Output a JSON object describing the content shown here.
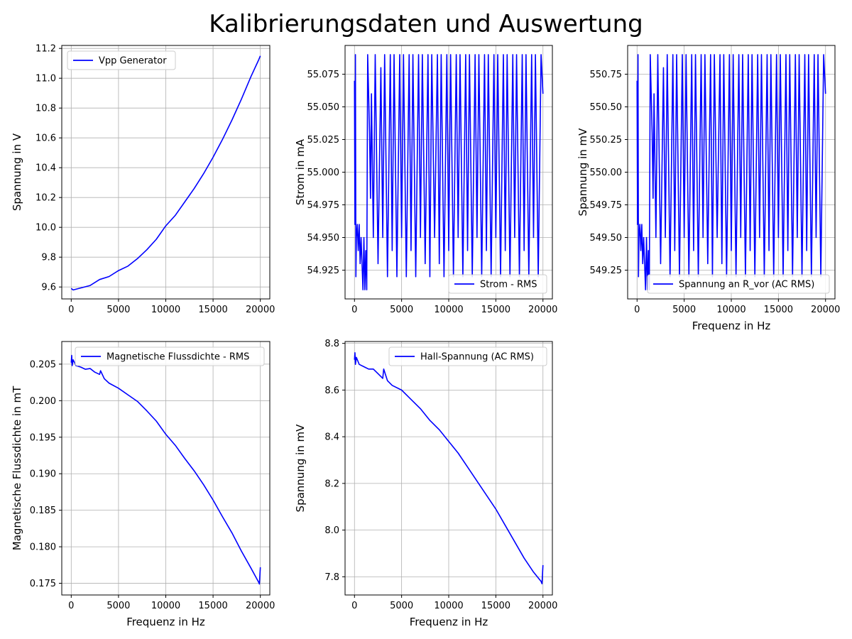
{
  "figure": {
    "title": "Kalibrierungsdaten und Auswertung"
  },
  "chart_data": [
    {
      "id": "p1",
      "type": "line",
      "xlabel": "",
      "ylabel": "Spannung in V",
      "xlim": [
        -1000,
        21000
      ],
      "ylim": [
        9.52,
        11.22
      ],
      "xticks": [
        0,
        5000,
        10000,
        15000,
        20000
      ],
      "xtick_labels": [
        "0",
        "5000",
        "10000",
        "15000",
        "20000"
      ],
      "yticks": [
        9.6,
        9.8,
        10.0,
        10.2,
        10.4,
        10.6,
        10.8,
        11.0,
        11.2
      ],
      "ytick_labels": [
        "9.6",
        "9.8",
        "10.0",
        "10.2",
        "10.4",
        "10.6",
        "10.8",
        "11.0",
        "11.2"
      ],
      "grid": true,
      "legend_position": "upper-left",
      "series": [
        {
          "name": "Vpp Generator",
          "color": "#0000ff",
          "x": [
            0,
            200,
            2000,
            3000,
            4000,
            5000,
            6000,
            7000,
            8000,
            9000,
            10000,
            11000,
            12000,
            13000,
            14000,
            15000,
            16000,
            17000,
            18000,
            19000,
            19800,
            20000
          ],
          "y": [
            9.59,
            9.58,
            9.61,
            9.65,
            9.67,
            9.71,
            9.74,
            9.79,
            9.85,
            9.92,
            10.01,
            10.08,
            10.17,
            10.26,
            10.36,
            10.47,
            10.59,
            10.72,
            10.86,
            11.01,
            11.12,
            11.15
          ]
        }
      ]
    },
    {
      "id": "p2",
      "type": "line",
      "xlabel": "",
      "ylabel": "Strom in mA",
      "xlim": [
        -1000,
        21000
      ],
      "ylim": [
        54.903,
        55.097
      ],
      "xticks": [
        0,
        5000,
        10000,
        15000,
        20000
      ],
      "xtick_labels": [
        "0",
        "5000",
        "10000",
        "15000",
        "20000"
      ],
      "yticks": [
        54.925,
        54.95,
        54.975,
        55.0,
        55.025,
        55.05,
        55.075
      ],
      "ytick_labels": [
        "54.925",
        "54.950",
        "54.975",
        "55.000",
        "55.025",
        "55.050",
        "55.075"
      ],
      "grid": true,
      "legend_position": "lower-right",
      "series": [
        {
          "name": "Strom - RMS",
          "color": "#0000ff",
          "x": [
            0,
            50,
            100,
            150,
            200,
            300,
            400,
            500,
            600,
            700,
            800,
            900,
            1000,
            1100,
            1200,
            1300,
            1400,
            1500,
            1600,
            1700,
            1800,
            2000,
            2200,
            2500,
            2800,
            3000,
            3200,
            3500,
            3800,
            4000,
            4200,
            4500,
            4800,
            5000,
            5200,
            5500,
            5800,
            6000,
            6200,
            6500,
            6800,
            7000,
            7200,
            7500,
            7800,
            8000,
            8200,
            8500,
            8800,
            9000,
            9200,
            9500,
            9800,
            10000,
            10200,
            10500,
            10800,
            11000,
            11200,
            11500,
            11800,
            12000,
            12200,
            12500,
            12800,
            13000,
            13200,
            13500,
            13800,
            14000,
            14200,
            14500,
            14800,
            15000,
            15200,
            15500,
            15800,
            16000,
            16200,
            16500,
            16800,
            17000,
            17200,
            17500,
            17800,
            18000,
            18200,
            18500,
            18800,
            19000,
            19200,
            19500,
            19800,
            20000
          ],
          "y": [
            55.07,
            54.96,
            55.09,
            54.92,
            54.95,
            54.96,
            54.94,
            54.96,
            54.93,
            54.95,
            54.93,
            54.91,
            54.95,
            54.91,
            54.94,
            54.91,
            55.09,
            55.06,
            55.03,
            54.98,
            55.06,
            54.95,
            55.09,
            54.93,
            55.08,
            54.95,
            55.09,
            54.92,
            55.09,
            54.94,
            55.09,
            54.92,
            55.09,
            54.95,
            55.09,
            54.92,
            55.09,
            54.94,
            55.09,
            54.92,
            55.09,
            54.95,
            55.09,
            54.93,
            55.09,
            54.92,
            55.09,
            54.95,
            55.09,
            54.93,
            55.09,
            54.92,
            55.09,
            54.94,
            55.09,
            54.92,
            55.09,
            54.95,
            55.09,
            54.92,
            55.09,
            54.94,
            55.09,
            54.92,
            55.09,
            54.95,
            55.09,
            54.92,
            55.09,
            54.94,
            55.09,
            54.92,
            55.09,
            54.95,
            55.09,
            54.92,
            55.09,
            54.94,
            55.09,
            54.92,
            55.09,
            54.95,
            55.09,
            54.92,
            55.09,
            54.94,
            55.09,
            54.92,
            55.09,
            54.95,
            55.09,
            54.92,
            55.09,
            55.06
          ]
        }
      ]
    },
    {
      "id": "p3",
      "type": "line",
      "xlabel": "Frequenz in Hz",
      "ylabel": "Spannung in mV",
      "xlim": [
        -1000,
        21000
      ],
      "ylim": [
        549.03,
        550.97
      ],
      "xticks": [
        0,
        5000,
        10000,
        15000,
        20000
      ],
      "xtick_labels": [
        "0",
        "5000",
        "10000",
        "15000",
        "20000"
      ],
      "yticks": [
        549.25,
        549.5,
        549.75,
        550.0,
        550.25,
        550.5,
        550.75
      ],
      "ytick_labels": [
        "549.25",
        "549.50",
        "549.75",
        "550.00",
        "550.25",
        "550.50",
        "550.75"
      ],
      "grid": true,
      "legend_position": "lower-right",
      "series": [
        {
          "name": "Spannung an R_vor (AC RMS)",
          "color": "#0000ff",
          "x": [
            0,
            50,
            100,
            150,
            200,
            300,
            400,
            500,
            600,
            700,
            800,
            900,
            1000,
            1100,
            1200,
            1300,
            1400,
            1500,
            1600,
            1700,
            1800,
            2000,
            2200,
            2500,
            2800,
            3000,
            3200,
            3500,
            3800,
            4000,
            4200,
            4500,
            4800,
            5000,
            5200,
            5500,
            5800,
            6000,
            6200,
            6500,
            6800,
            7000,
            7200,
            7500,
            7800,
            8000,
            8200,
            8500,
            8800,
            9000,
            9200,
            9500,
            9800,
            10000,
            10200,
            10500,
            10800,
            11000,
            11200,
            11500,
            11800,
            12000,
            12200,
            12500,
            12800,
            13000,
            13200,
            13500,
            13800,
            14000,
            14200,
            14500,
            14800,
            15000,
            15200,
            15500,
            15800,
            16000,
            16200,
            16500,
            16800,
            17000,
            17200,
            17500,
            17800,
            18000,
            18200,
            18500,
            18800,
            19000,
            19200,
            19500,
            19800,
            20000
          ],
          "y": [
            550.7,
            549.6,
            550.9,
            549.2,
            549.5,
            549.6,
            549.4,
            549.6,
            549.3,
            549.5,
            549.3,
            549.1,
            549.5,
            549.1,
            549.4,
            549.1,
            550.9,
            550.6,
            550.3,
            549.8,
            550.6,
            549.5,
            550.9,
            549.3,
            550.8,
            549.5,
            550.9,
            549.2,
            550.9,
            549.4,
            550.9,
            549.2,
            550.9,
            549.5,
            550.9,
            549.2,
            550.9,
            549.4,
            550.9,
            549.2,
            550.9,
            549.5,
            550.9,
            549.3,
            550.9,
            549.2,
            550.9,
            549.5,
            550.9,
            549.3,
            550.9,
            549.2,
            550.9,
            549.4,
            550.9,
            549.2,
            550.9,
            549.5,
            550.9,
            549.2,
            550.9,
            549.4,
            550.9,
            549.2,
            550.9,
            549.5,
            550.9,
            549.2,
            550.9,
            549.4,
            550.9,
            549.2,
            550.9,
            549.5,
            550.9,
            549.2,
            550.9,
            549.4,
            550.9,
            549.2,
            550.9,
            549.5,
            550.9,
            549.2,
            550.9,
            549.4,
            550.9,
            549.2,
            550.9,
            549.5,
            550.9,
            549.2,
            550.9,
            550.6
          ]
        }
      ]
    },
    {
      "id": "p4",
      "type": "line",
      "xlabel": "Frequenz in Hz",
      "ylabel": "Magnetische Flussdichte in mT",
      "xlim": [
        -1000,
        21000
      ],
      "ylim": [
        0.1734,
        0.2081
      ],
      "xticks": [
        0,
        5000,
        10000,
        15000,
        20000
      ],
      "xtick_labels": [
        "0",
        "5000",
        "10000",
        "15000",
        "20000"
      ],
      "yticks": [
        0.175,
        0.18,
        0.185,
        0.19,
        0.195,
        0.2,
        0.205
      ],
      "ytick_labels": [
        "0.175",
        "0.180",
        "0.185",
        "0.190",
        "0.195",
        "0.200",
        "0.205"
      ],
      "grid": true,
      "legend_position": "upper-right",
      "series": [
        {
          "name": "Magnetische Flussdichte - RMS",
          "color": "#0000ff",
          "x": [
            0,
            50,
            100,
            200,
            500,
            1000,
            1500,
            2000,
            2500,
            3000,
            3100,
            3500,
            4000,
            5000,
            6000,
            7000,
            8000,
            9000,
            10000,
            11000,
            12000,
            13000,
            14000,
            15000,
            16000,
            17000,
            18000,
            19000,
            19800,
            19900,
            20000
          ],
          "y": [
            0.2052,
            0.2062,
            0.2048,
            0.2056,
            0.2048,
            0.2046,
            0.2043,
            0.2044,
            0.2039,
            0.2036,
            0.2041,
            0.203,
            0.2024,
            0.2017,
            0.2008,
            0.1999,
            0.1986,
            0.1972,
            0.1954,
            0.1939,
            0.1921,
            0.1904,
            0.1885,
            0.1864,
            0.1841,
            0.1819,
            0.1794,
            0.1771,
            0.1752,
            0.1749,
            0.1772
          ]
        }
      ]
    },
    {
      "id": "p5",
      "type": "line",
      "xlabel": "Frequenz in Hz",
      "ylabel": "Spannung in mV",
      "xlim": [
        -1000,
        21000
      ],
      "ylim": [
        7.722,
        8.808
      ],
      "xticks": [
        0,
        5000,
        10000,
        15000,
        20000
      ],
      "xtick_labels": [
        "0",
        "5000",
        "10000",
        "15000",
        "20000"
      ],
      "yticks": [
        7.8,
        8.0,
        8.2,
        8.4,
        8.6,
        8.8
      ],
      "ytick_labels": [
        "7.8",
        "8.0",
        "8.2",
        "8.4",
        "8.6",
        "8.8"
      ],
      "grid": true,
      "legend_position": "upper-right",
      "series": [
        {
          "name": "Hall-Spannung (AC RMS)",
          "color": "#0000ff",
          "x": [
            0,
            50,
            100,
            200,
            500,
            1000,
            1500,
            2000,
            2500,
            3000,
            3100,
            3500,
            4000,
            5000,
            6000,
            7000,
            8000,
            9000,
            10000,
            11000,
            12000,
            13000,
            14000,
            15000,
            16000,
            17000,
            18000,
            19000,
            19800,
            19900,
            20000
          ],
          "y": [
            8.73,
            8.76,
            8.71,
            8.74,
            8.71,
            8.7,
            8.69,
            8.69,
            8.67,
            8.65,
            8.69,
            8.64,
            8.62,
            8.6,
            8.56,
            8.52,
            8.47,
            8.43,
            8.38,
            8.33,
            8.27,
            8.21,
            8.15,
            8.09,
            8.02,
            7.95,
            7.88,
            7.82,
            7.78,
            7.77,
            7.85
          ]
        }
      ]
    }
  ]
}
